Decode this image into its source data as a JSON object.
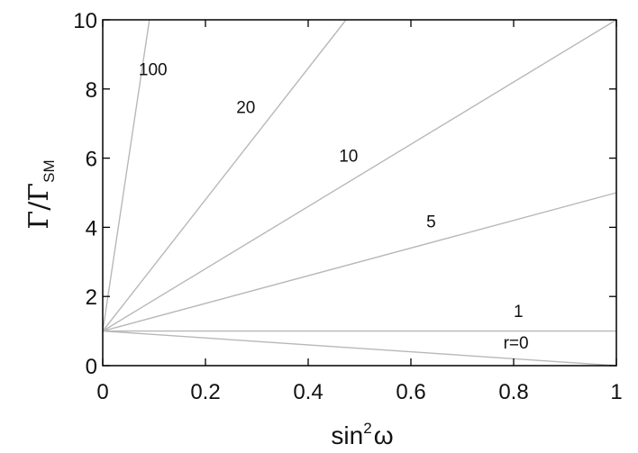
{
  "chart_data": {
    "type": "line",
    "title": "",
    "xlabel_base": "sin",
    "xlabel_sup": "2",
    "xlabel_tail": "ω",
    "ylabel_main": "Γ/Γ",
    "ylabel_sub": "SM",
    "xlim": [
      0,
      1
    ],
    "ylim": [
      0,
      10
    ],
    "xticks": [
      "0",
      "0.2",
      "0.4",
      "0.6",
      "0.8",
      "1"
    ],
    "yticks": [
      "0",
      "2",
      "4",
      "6",
      "8",
      "10"
    ],
    "grid": false,
    "line_color": "#b8b8b8",
    "series": [
      {
        "label": "r=0",
        "x": [
          0,
          1
        ],
        "y": [
          1,
          0
        ],
        "label_pos": [
          0.78,
          0.5
        ]
      },
      {
        "label": "1",
        "x": [
          0,
          1
        ],
        "y": [
          1,
          1
        ],
        "label_pos": [
          0.8,
          1.4
        ]
      },
      {
        "label": "5",
        "x": [
          0,
          1
        ],
        "y": [
          1,
          5
        ],
        "label_pos": [
          0.63,
          4.0
        ]
      },
      {
        "label": "10",
        "x": [
          0,
          1
        ],
        "y": [
          1,
          10
        ],
        "label_pos": [
          0.46,
          5.9
        ]
      },
      {
        "label": "20",
        "x": [
          0,
          0.4737
        ],
        "y": [
          1,
          10
        ],
        "label_pos": [
          0.26,
          7.3
        ]
      },
      {
        "label": "100",
        "x": [
          0,
          0.0909
        ],
        "y": [
          1,
          10
        ],
        "label_pos": [
          0.07,
          8.4
        ]
      }
    ]
  }
}
